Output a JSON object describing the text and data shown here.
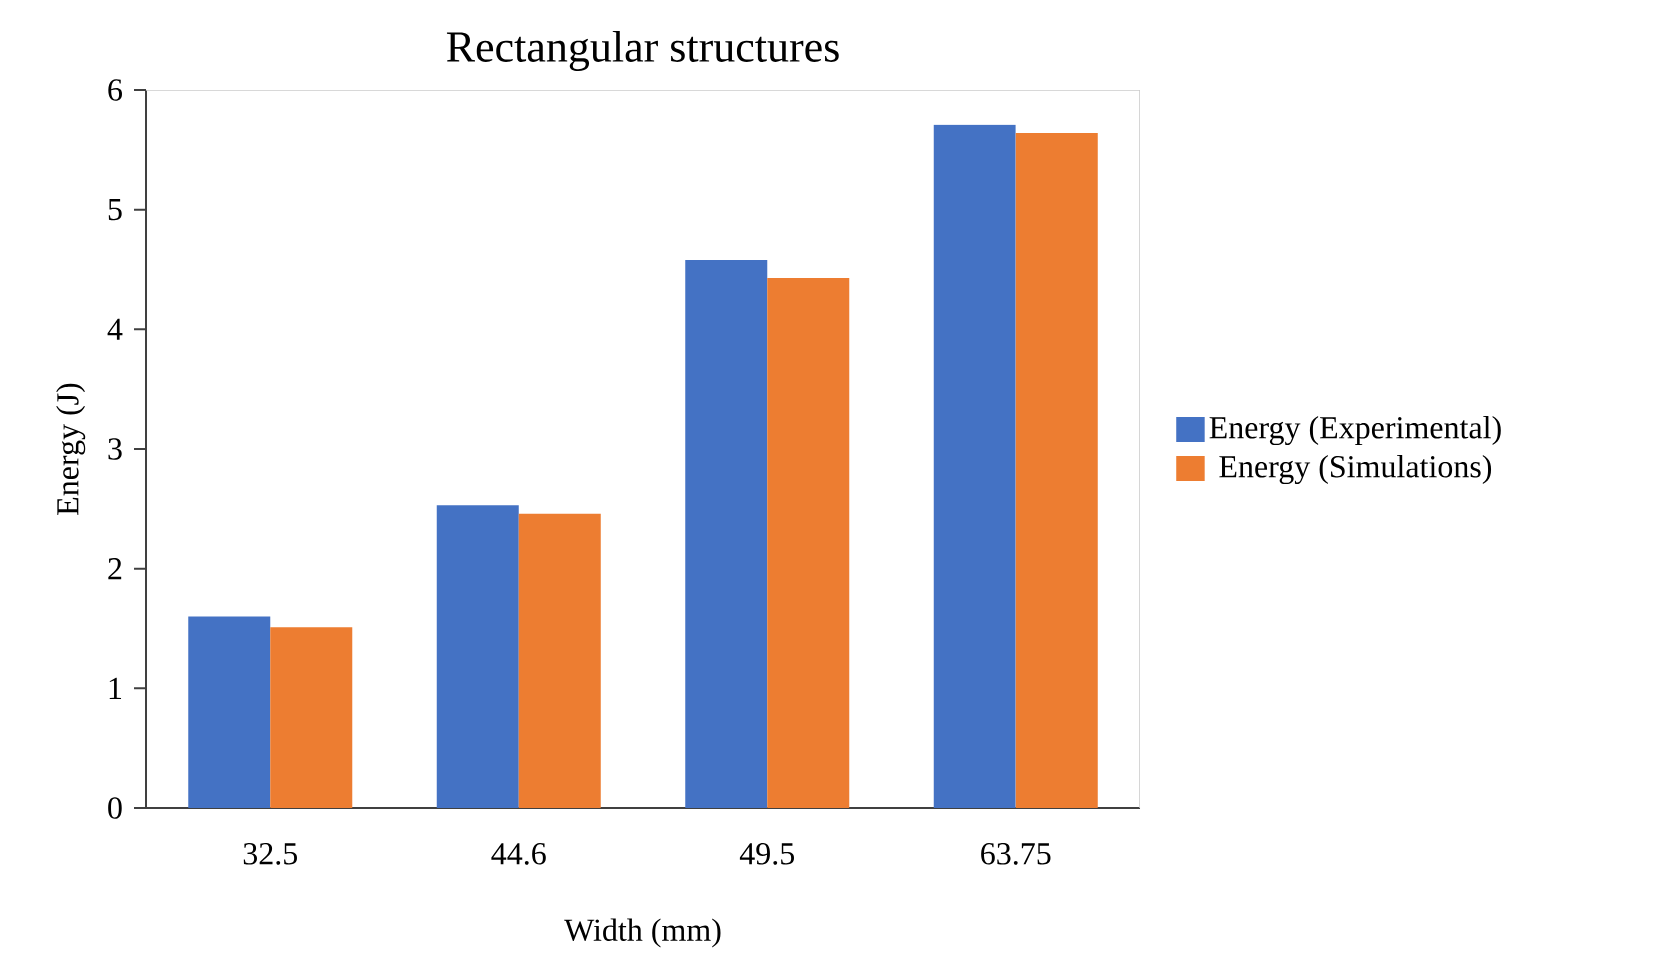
{
  "chart_data": {
    "type": "bar",
    "title": "Rectangular structures",
    "xlabel": "Width (mm)",
    "ylabel": "Energy (J)",
    "categories": [
      "32.5",
      "44.6",
      "49.5",
      "63.75"
    ],
    "series": [
      {
        "name": "Energy (Experimental)",
        "color": "#4472c4",
        "values": [
          1.6,
          2.53,
          4.58,
          5.71
        ]
      },
      {
        "name": "Energy (Simulations)",
        "color": "#ed7d31",
        "values": [
          1.51,
          2.46,
          4.43,
          5.64
        ]
      }
    ],
    "ylim": [
      0,
      6
    ],
    "yticks": [
      0,
      1,
      2,
      3,
      4,
      5,
      6
    ],
    "grid": false,
    "legend": "right"
  }
}
